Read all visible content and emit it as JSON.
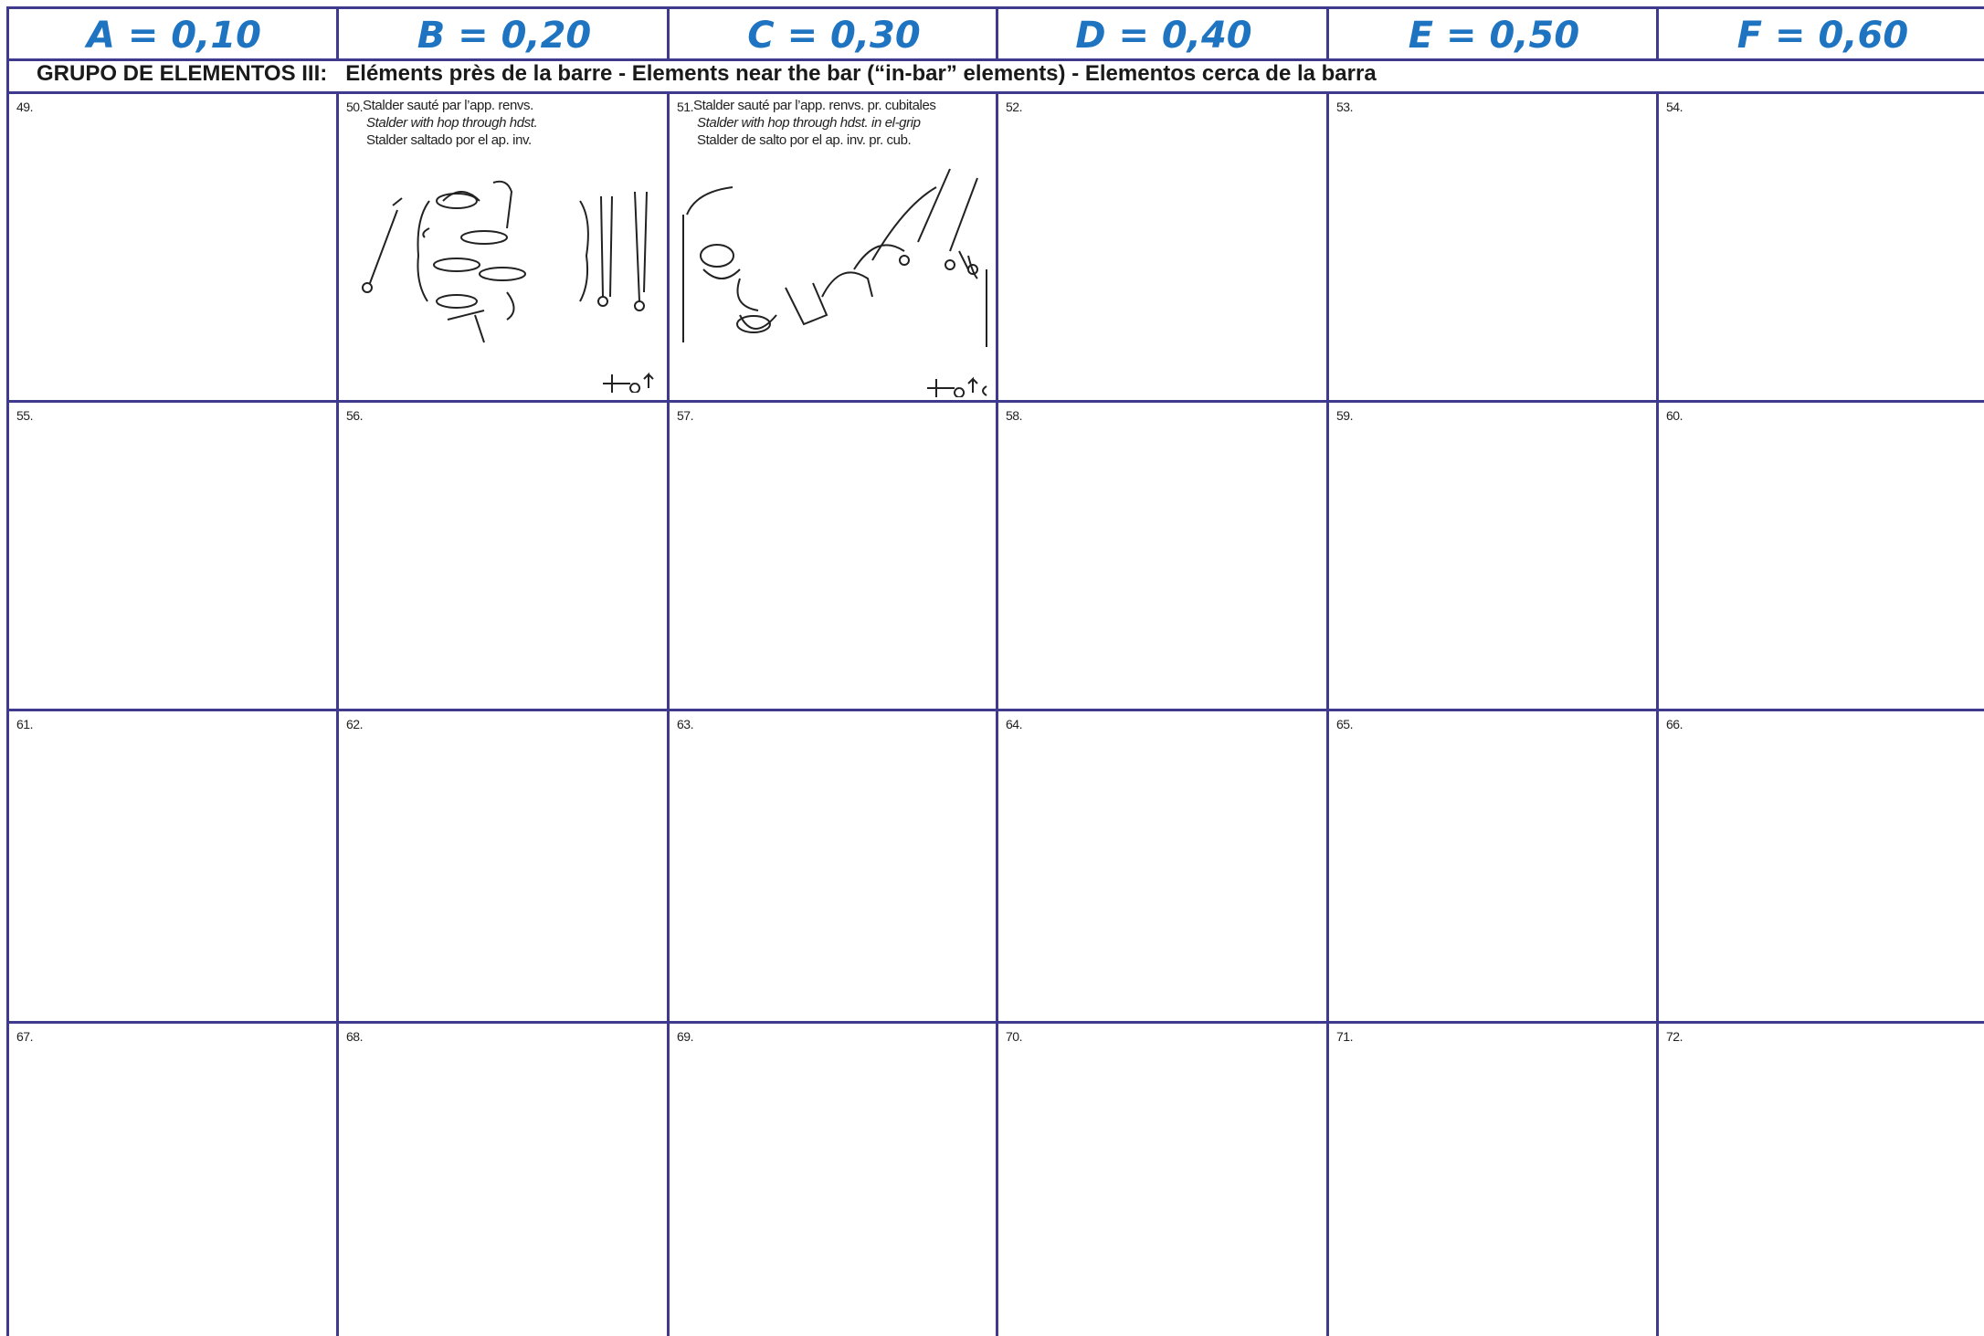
{
  "header": {
    "columns": [
      "A = 0,10",
      "B = 0,20",
      "C = 0,30",
      "D = 0,40",
      "E = 0,50",
      "F = 0,60"
    ]
  },
  "group_title": "GRUPO DE ELEMENTOS III:   Eléments près de la barre - Elements near the bar (“in-bar” elements) - Elementos cerca de la barra",
  "cells": [
    {
      "number": "49."
    },
    {
      "number": "50.",
      "lines": [
        "Stalder sauté par l’app. renvs.",
        "Stalder with hop through hdst.",
        "Stalder saltado por el ap. inv."
      ]
    },
    {
      "number": "51.",
      "lines": [
        "Stalder sauté par l’app. renvs. pr. cubitales",
        "Stalder with hop through hdst. in el-grip",
        "Stalder de salto por el ap. inv. pr. cub."
      ]
    },
    {
      "number": "52."
    },
    {
      "number": "53."
    },
    {
      "number": "54."
    },
    {
      "number": "55."
    },
    {
      "number": "56."
    },
    {
      "number": "57."
    },
    {
      "number": "58."
    },
    {
      "number": "59."
    },
    {
      "number": "60."
    },
    {
      "number": "61."
    },
    {
      "number": "62."
    },
    {
      "number": "63."
    },
    {
      "number": "64."
    },
    {
      "number": "65."
    },
    {
      "number": "66."
    },
    {
      "number": "67."
    },
    {
      "number": "68."
    },
    {
      "number": "69."
    },
    {
      "number": "70."
    },
    {
      "number": "71."
    },
    {
      "number": "72."
    }
  ]
}
